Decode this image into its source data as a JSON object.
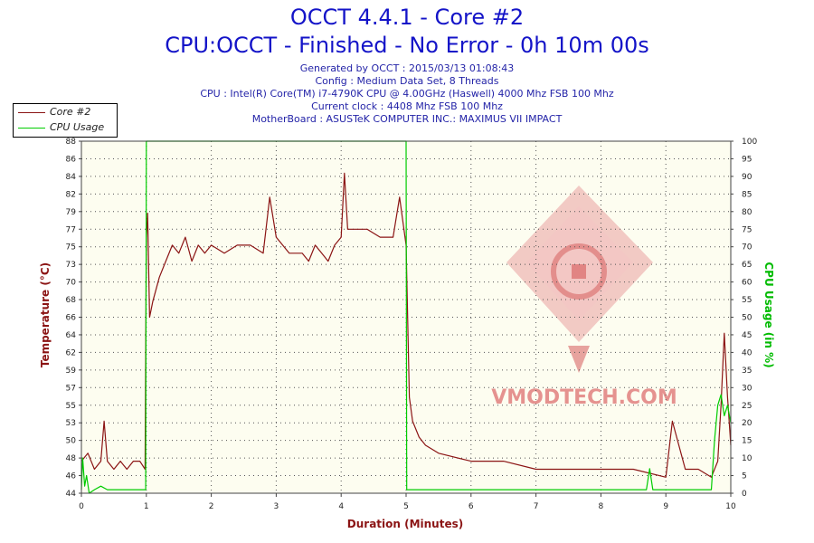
{
  "header": {
    "title": "OCCT 4.4.1 - Core #2",
    "subtitle": "CPU:OCCT - Finished - No Error - 0h 10m 00s",
    "info_lines": [
      "Generated by OCCT : 2015/03/13 01:08:43",
      "Config : Medium Data Set, 8 Threads",
      "CPU : Intel(R) Core(TM) i7-4790K CPU @ 4.00GHz (Haswell) 4000 Mhz FSB 100 Mhz",
      "Current clock : 4408 Mhz FSB 100 Mhz",
      "MotherBoard : ASUSTeK COMPUTER INC.: MAXIMUS VII IMPACT"
    ]
  },
  "watermark": {
    "text": "VMODTECH.COM",
    "color": "#e07878"
  },
  "colors": {
    "temperature": "#8b1414",
    "cpu_usage": "#00cc00",
    "plot_bg": "#fdfdf0",
    "title": "#1414c8"
  },
  "chart_data": {
    "type": "line",
    "xlabel": "Duration (Minutes)",
    "ylabel": "Temperature (°C)",
    "y2label": "CPU Usage (in %)",
    "xlim": [
      0,
      10
    ],
    "ylim": [
      44,
      88
    ],
    "y2lim": [
      0,
      100
    ],
    "x_ticks": [
      "0",
      "1",
      "2",
      "3",
      "4",
      "5",
      "6",
      "7",
      "8",
      "9",
      "10"
    ],
    "y_ticks": [
      "44",
      "46",
      "48",
      "50",
      "53",
      "55",
      "57",
      "59",
      "62",
      "64",
      "66",
      "68",
      "70",
      "73",
      "75",
      "77",
      "79",
      "82",
      "84",
      "86",
      "88"
    ],
    "y2_ticks": [
      "0",
      "5",
      "10",
      "15",
      "20",
      "25",
      "30",
      "35",
      "40",
      "45",
      "50",
      "55",
      "60",
      "65",
      "70",
      "75",
      "80",
      "85",
      "90",
      "95",
      "100"
    ],
    "grid": true,
    "legend": "top-left",
    "series": [
      {
        "name": "Core #2",
        "axis": "left",
        "color": "#8b1414",
        "x": [
          0,
          0.1,
          0.2,
          0.3,
          0.35,
          0.4,
          0.5,
          0.6,
          0.7,
          0.8,
          0.9,
          0.98,
          1.0,
          1.02,
          1.05,
          1.1,
          1.2,
          1.3,
          1.4,
          1.5,
          1.6,
          1.7,
          1.8,
          1.9,
          2.0,
          2.2,
          2.4,
          2.6,
          2.8,
          2.9,
          3.0,
          3.2,
          3.4,
          3.5,
          3.6,
          3.7,
          3.8,
          3.9,
          4.0,
          4.05,
          4.1,
          4.2,
          4.4,
          4.6,
          4.8,
          4.9,
          4.95,
          5.0,
          5.05,
          5.1,
          5.2,
          5.3,
          5.5,
          6.0,
          6.5,
          7.0,
          7.5,
          8.0,
          8.5,
          9.0,
          9.1,
          9.3,
          9.5,
          9.7,
          9.8,
          9.85,
          9.9,
          9.95,
          10.0
        ],
        "y": [
          48,
          49,
          47,
          48,
          53,
          48,
          47,
          48,
          47,
          48,
          48,
          47,
          76,
          79,
          66,
          68,
          71,
          73,
          75,
          74,
          76,
          73,
          75,
          74,
          75,
          74,
          75,
          75,
          74,
          81,
          76,
          74,
          74,
          73,
          75,
          74,
          73,
          75,
          76,
          84,
          77,
          77,
          77,
          76,
          76,
          81,
          78,
          75,
          56,
          53,
          51,
          50,
          49,
          48,
          48,
          47,
          47,
          47,
          47,
          46,
          53,
          47,
          47,
          46,
          48,
          55,
          64,
          56,
          50
        ]
      },
      {
        "name": "CPU Usage",
        "axis": "right",
        "color": "#00cc00",
        "x": [
          0,
          0.02,
          0.05,
          0.08,
          0.12,
          0.2,
          0.3,
          0.4,
          0.5,
          0.7,
          0.99,
          1.0,
          1.01,
          4.99,
          5.0,
          5.01,
          6.0,
          7.0,
          8.0,
          8.7,
          8.75,
          8.8,
          9.0,
          9.5,
          9.7,
          9.75,
          9.8,
          9.85,
          9.9,
          9.95,
          10.0
        ],
        "y": [
          1,
          10,
          2,
          5,
          0,
          1,
          2,
          1,
          1,
          1,
          1,
          100,
          100,
          100,
          100,
          1,
          1,
          1,
          1,
          1,
          7,
          1,
          1,
          1,
          1,
          15,
          25,
          28,
          22,
          25,
          20
        ]
      }
    ]
  }
}
